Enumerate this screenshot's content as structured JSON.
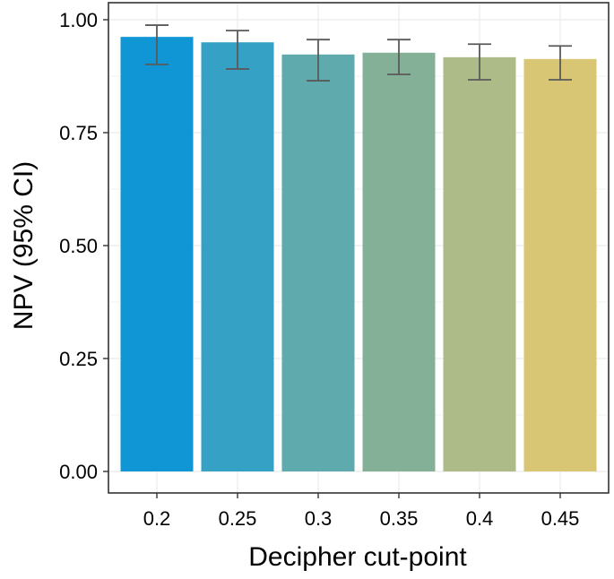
{
  "chart_data": {
    "type": "bar",
    "title": "",
    "xlabel": "Decipher cut-point",
    "ylabel": "NPV (95% CI)",
    "categories": [
      "0.2",
      "0.25",
      "0.3",
      "0.35",
      "0.4",
      "0.45"
    ],
    "values": [
      0.962,
      0.95,
      0.923,
      0.927,
      0.917,
      0.913
    ],
    "error_lower": [
      0.901,
      0.891,
      0.865,
      0.879,
      0.867,
      0.867
    ],
    "error_upper": [
      0.988,
      0.976,
      0.956,
      0.956,
      0.946,
      0.942
    ],
    "colors": [
      "#1196D5",
      "#35A1C4",
      "#5FAAAC",
      "#85B098",
      "#ADBB88",
      "#D8C675"
    ],
    "ylim": [
      0,
      1
    ],
    "yticks": [
      0.0,
      0.25,
      0.5,
      0.75,
      1.0
    ],
    "ytick_labels": [
      "0.00",
      "0.25",
      "0.50",
      "0.75",
      "1.00"
    ],
    "grid": true,
    "legend": null
  },
  "axes": {
    "xlabel": "Decipher cut-point",
    "ylabel": "NPV (95% CI)"
  }
}
